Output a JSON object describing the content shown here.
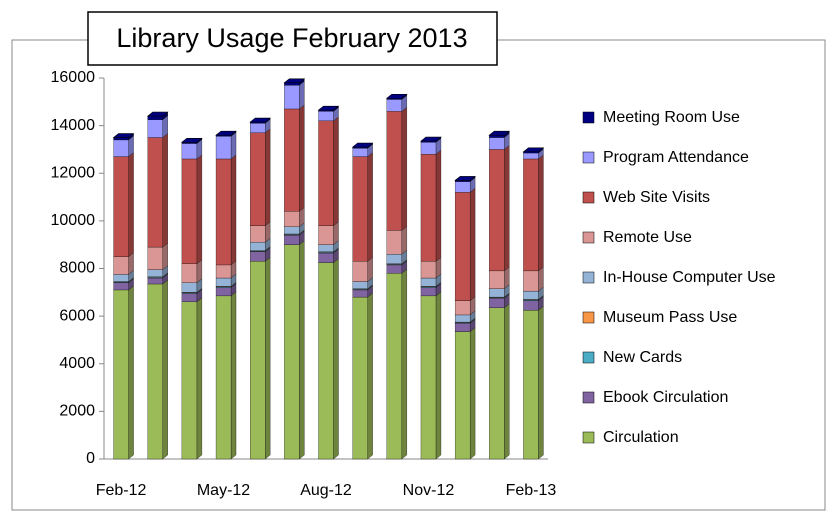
{
  "chart_data": {
    "type": "stacked_bar",
    "title": "Library Usage February 2013",
    "categories": [
      "Feb-12",
      null,
      null,
      "May-12",
      null,
      null,
      "Aug-12",
      null,
      null,
      "Nov-12",
      null,
      null,
      "Feb-13"
    ],
    "series": [
      {
        "name": "Circulation",
        "color": "#9bbb59",
        "values": [
          7100,
          7350,
          6600,
          6850,
          8300,
          9000,
          8250,
          6800,
          7800,
          6850,
          5350,
          6350,
          6250
        ]
      },
      {
        "name": "Ebook Circulation",
        "color": "#8064a2",
        "values": [
          300,
          250,
          350,
          350,
          400,
          400,
          400,
          300,
          350,
          350,
          350,
          400,
          400
        ]
      },
      {
        "name": "New Cards",
        "color": "#4bacc6",
        "values": [
          30,
          30,
          30,
          30,
          30,
          30,
          30,
          30,
          30,
          30,
          30,
          30,
          30
        ]
      },
      {
        "name": "Museum Pass Use",
        "color": "#f79646",
        "values": [
          20,
          20,
          20,
          20,
          20,
          20,
          20,
          20,
          20,
          20,
          20,
          20,
          20
        ]
      },
      {
        "name": "In-House Computer Use",
        "color": "#95b3d7",
        "values": [
          300,
          300,
          400,
          350,
          350,
          300,
          300,
          300,
          400,
          350,
          300,
          350,
          350
        ]
      },
      {
        "name": "Remote Use",
        "color": "#d99694",
        "values": [
          750,
          950,
          800,
          550,
          700,
          650,
          800,
          850,
          1000,
          700,
          600,
          750,
          850
        ]
      },
      {
        "name": "Web Site Visits",
        "color": "#c0504d",
        "values": [
          4200,
          4600,
          4400,
          4450,
          3900,
          4300,
          4400,
          4400,
          5000,
          4500,
          4550,
          5100,
          4700
        ]
      },
      {
        "name": "Program Attendance",
        "color": "#9999ff",
        "values": [
          700,
          750,
          650,
          950,
          400,
          1000,
          400,
          350,
          500,
          500,
          450,
          500,
          250
        ]
      },
      {
        "name": "Meeting Room Use",
        "color": "#000080",
        "values": [
          100,
          150,
          50,
          50,
          50,
          100,
          50,
          50,
          50,
          50,
          50,
          100,
          50
        ]
      }
    ],
    "ylim": [
      0,
      16000
    ],
    "yticks": [
      0,
      2000,
      4000,
      6000,
      8000,
      10000,
      12000,
      14000,
      16000
    ]
  }
}
